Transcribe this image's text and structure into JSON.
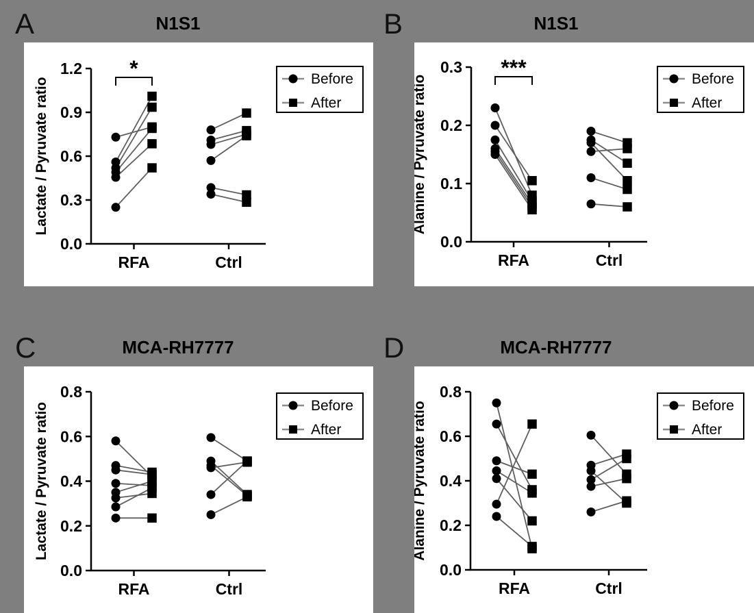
{
  "figure": {
    "background": "#7f7f7f",
    "panel_background": "#ffffff",
    "ink": "#000000",
    "line_color": "#5f5f5f"
  },
  "legend": {
    "items": [
      {
        "label": "Before",
        "marker": "circle"
      },
      {
        "label": "After",
        "marker": "square"
      }
    ]
  },
  "chart_data": [
    {
      "panel": "A",
      "type": "scatter",
      "title": "N1S1",
      "ylabel": "Lactate / Pyruvate ratio",
      "xlabel": "",
      "ylim": [
        0,
        1.2
      ],
      "yticks": [
        "0.0",
        "0.3",
        "0.6",
        "0.9",
        "1.2"
      ],
      "categories": [
        "RFA",
        "Ctrl"
      ],
      "legend_position": "top-right",
      "grid": false,
      "groups": [
        {
          "name": "RFA",
          "significance": "*",
          "pairs": [
            [
              0.73,
              0.8
            ],
            [
              0.56,
              1.01
            ],
            [
              0.52,
              0.935
            ],
            [
              0.49,
              0.79
            ],
            [
              0.455,
              0.685
            ],
            [
              0.25,
              0.52
            ]
          ]
        },
        {
          "name": "Ctrl",
          "significance": null,
          "pairs": [
            [
              0.78,
              0.895
            ],
            [
              0.71,
              0.775
            ],
            [
              0.68,
              0.75
            ],
            [
              0.57,
              0.74
            ],
            [
              0.385,
              0.335
            ],
            [
              0.34,
              0.285
            ]
          ]
        }
      ]
    },
    {
      "panel": "B",
      "type": "scatter",
      "title": "N1S1",
      "ylabel": "Alanine / Pyruvate ratio",
      "xlabel": "",
      "ylim": [
        0,
        0.3
      ],
      "yticks": [
        "0.0",
        "0.1",
        "0.2",
        "0.3"
      ],
      "categories": [
        "RFA",
        "Ctrl"
      ],
      "legend_position": "top-right",
      "grid": false,
      "groups": [
        {
          "name": "RFA",
          "significance": "***",
          "pairs": [
            [
              0.23,
              0.08
            ],
            [
              0.2,
              0.105
            ],
            [
              0.175,
              0.07
            ],
            [
              0.16,
              0.065
            ],
            [
              0.155,
              0.06
            ],
            [
              0.15,
              0.055
            ]
          ]
        },
        {
          "name": "Ctrl",
          "significance": null,
          "pairs": [
            [
              0.19,
              0.17
            ],
            [
              0.175,
              0.135
            ],
            [
              0.17,
              0.105
            ],
            [
              0.155,
              0.16
            ],
            [
              0.11,
              0.09
            ],
            [
              0.065,
              0.06
            ]
          ]
        }
      ]
    },
    {
      "panel": "C",
      "type": "scatter",
      "title": "MCA-RH7777",
      "ylabel": "Lactate / Pyruvate ratio",
      "xlabel": "",
      "ylim": [
        0,
        0.8
      ],
      "yticks": [
        "0.0",
        "0.2",
        "0.4",
        "0.6",
        "0.8"
      ],
      "categories": [
        "RFA",
        "Ctrl"
      ],
      "legend_position": "top-right",
      "grid": false,
      "groups": [
        {
          "name": "RFA",
          "significance": null,
          "pairs": [
            [
              0.58,
              0.42
            ],
            [
              0.47,
              0.44
            ],
            [
              0.45,
              0.43
            ],
            [
              0.39,
              0.38
            ],
            [
              0.35,
              0.4
            ],
            [
              0.325,
              0.345
            ],
            [
              0.285,
              0.37
            ],
            [
              0.235,
              0.235
            ]
          ]
        },
        {
          "name": "Ctrl",
          "significance": null,
          "pairs": [
            [
              0.595,
              0.49
            ],
            [
              0.49,
              0.34
            ],
            [
              0.47,
              0.335
            ],
            [
              0.46,
              0.485
            ],
            [
              0.34,
              0.49
            ],
            [
              0.25,
              0.33
            ]
          ]
        }
      ]
    },
    {
      "panel": "D",
      "type": "scatter",
      "title": "MCA-RH7777",
      "ylabel": "Alanine / Pyruvate ratio",
      "xlabel": "",
      "ylim": [
        0,
        0.8
      ],
      "yticks": [
        "0.0",
        "0.2",
        "0.4",
        "0.6",
        "0.8"
      ],
      "categories": [
        "RFA",
        "Ctrl"
      ],
      "legend_position": "top-right",
      "grid": false,
      "groups": [
        {
          "name": "RFA",
          "significance": null,
          "pairs": [
            [
              0.75,
              0.095
            ],
            [
              0.655,
              0.36
            ],
            [
              0.49,
              0.43
            ],
            [
              0.445,
              0.345
            ],
            [
              0.41,
              0.22
            ],
            [
              0.295,
              0.655
            ],
            [
              0.24,
              0.105
            ]
          ]
        },
        {
          "name": "Ctrl",
          "significance": null,
          "pairs": [
            [
              0.605,
              0.43
            ],
            [
              0.47,
              0.52
            ],
            [
              0.445,
              0.3
            ],
            [
              0.405,
              0.5
            ],
            [
              0.375,
              0.41
            ],
            [
              0.26,
              0.31
            ]
          ]
        }
      ]
    }
  ]
}
